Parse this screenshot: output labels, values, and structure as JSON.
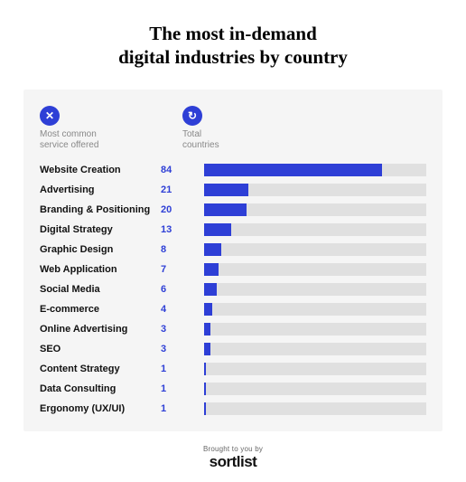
{
  "title": {
    "line1": "The most in-demand",
    "line2": "digital industries by country",
    "fontsize": 21,
    "color": "#000000"
  },
  "panel": {
    "background_color": "#f5f5f5"
  },
  "headers": {
    "service": {
      "label_line1": "Most common",
      "label_line2": "service offered",
      "icon_glyph": "✕",
      "icon_bg": "#2e3fd6",
      "fontsize": 10
    },
    "count": {
      "label_line1": "Total",
      "label_line2": "countries",
      "icon_glyph": "↻",
      "icon_bg": "#2e3fd6",
      "fontsize": 10
    }
  },
  "chart": {
    "type": "bar-horizontal",
    "max_value": 105,
    "bar_color": "#2e3fd6",
    "track_color": "#e0e0e0",
    "label_color": "#111111",
    "value_color": "#2e3fd6",
    "label_fontsize": 11,
    "value_fontsize": 11,
    "rows": [
      {
        "label": "Website Creation",
        "value": 84
      },
      {
        "label": "Advertising",
        "value": 21
      },
      {
        "label": "Branding & Positioning",
        "value": 20
      },
      {
        "label": "Digital Strategy",
        "value": 13
      },
      {
        "label": "Graphic Design",
        "value": 8
      },
      {
        "label": "Web Application",
        "value": 7
      },
      {
        "label": "Social Media",
        "value": 6
      },
      {
        "label": "E-commerce",
        "value": 4
      },
      {
        "label": "Online Advertising",
        "value": 3
      },
      {
        "label": "SEO",
        "value": 3
      },
      {
        "label": "Content Strategy",
        "value": 1
      },
      {
        "label": "Data Consulting",
        "value": 1
      },
      {
        "label": "Ergonomy (UX/UI)",
        "value": 1
      }
    ]
  },
  "footer": {
    "kicker": "Brought to you by",
    "brand": "sortlist",
    "brand_color": "#111111"
  }
}
